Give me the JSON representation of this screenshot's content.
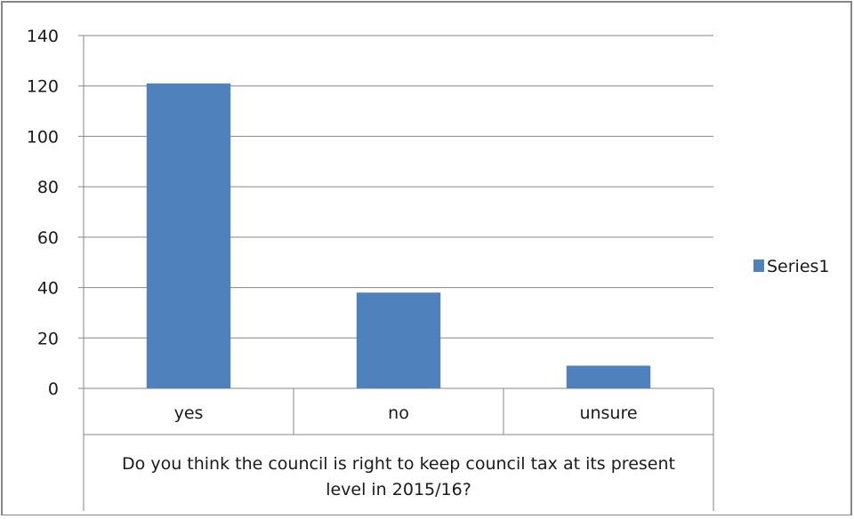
{
  "chart_data": {
    "type": "bar",
    "categories": [
      "yes",
      "no",
      "unsure"
    ],
    "series": [
      {
        "name": "Series1",
        "values": [
          121,
          38,
          9
        ]
      }
    ],
    "xlabel": [
      "Do you think the council is right to keep council tax at its present",
      "level in 2015/16?"
    ],
    "ylim": [
      0,
      140
    ],
    "yticks": [
      0,
      20,
      40,
      60,
      80,
      100,
      120,
      140
    ],
    "grid": true,
    "legend": "right",
    "colors": {
      "bar": "#4f81bd",
      "grid": "#868686",
      "axis": "#868686",
      "border": "#868686"
    }
  }
}
